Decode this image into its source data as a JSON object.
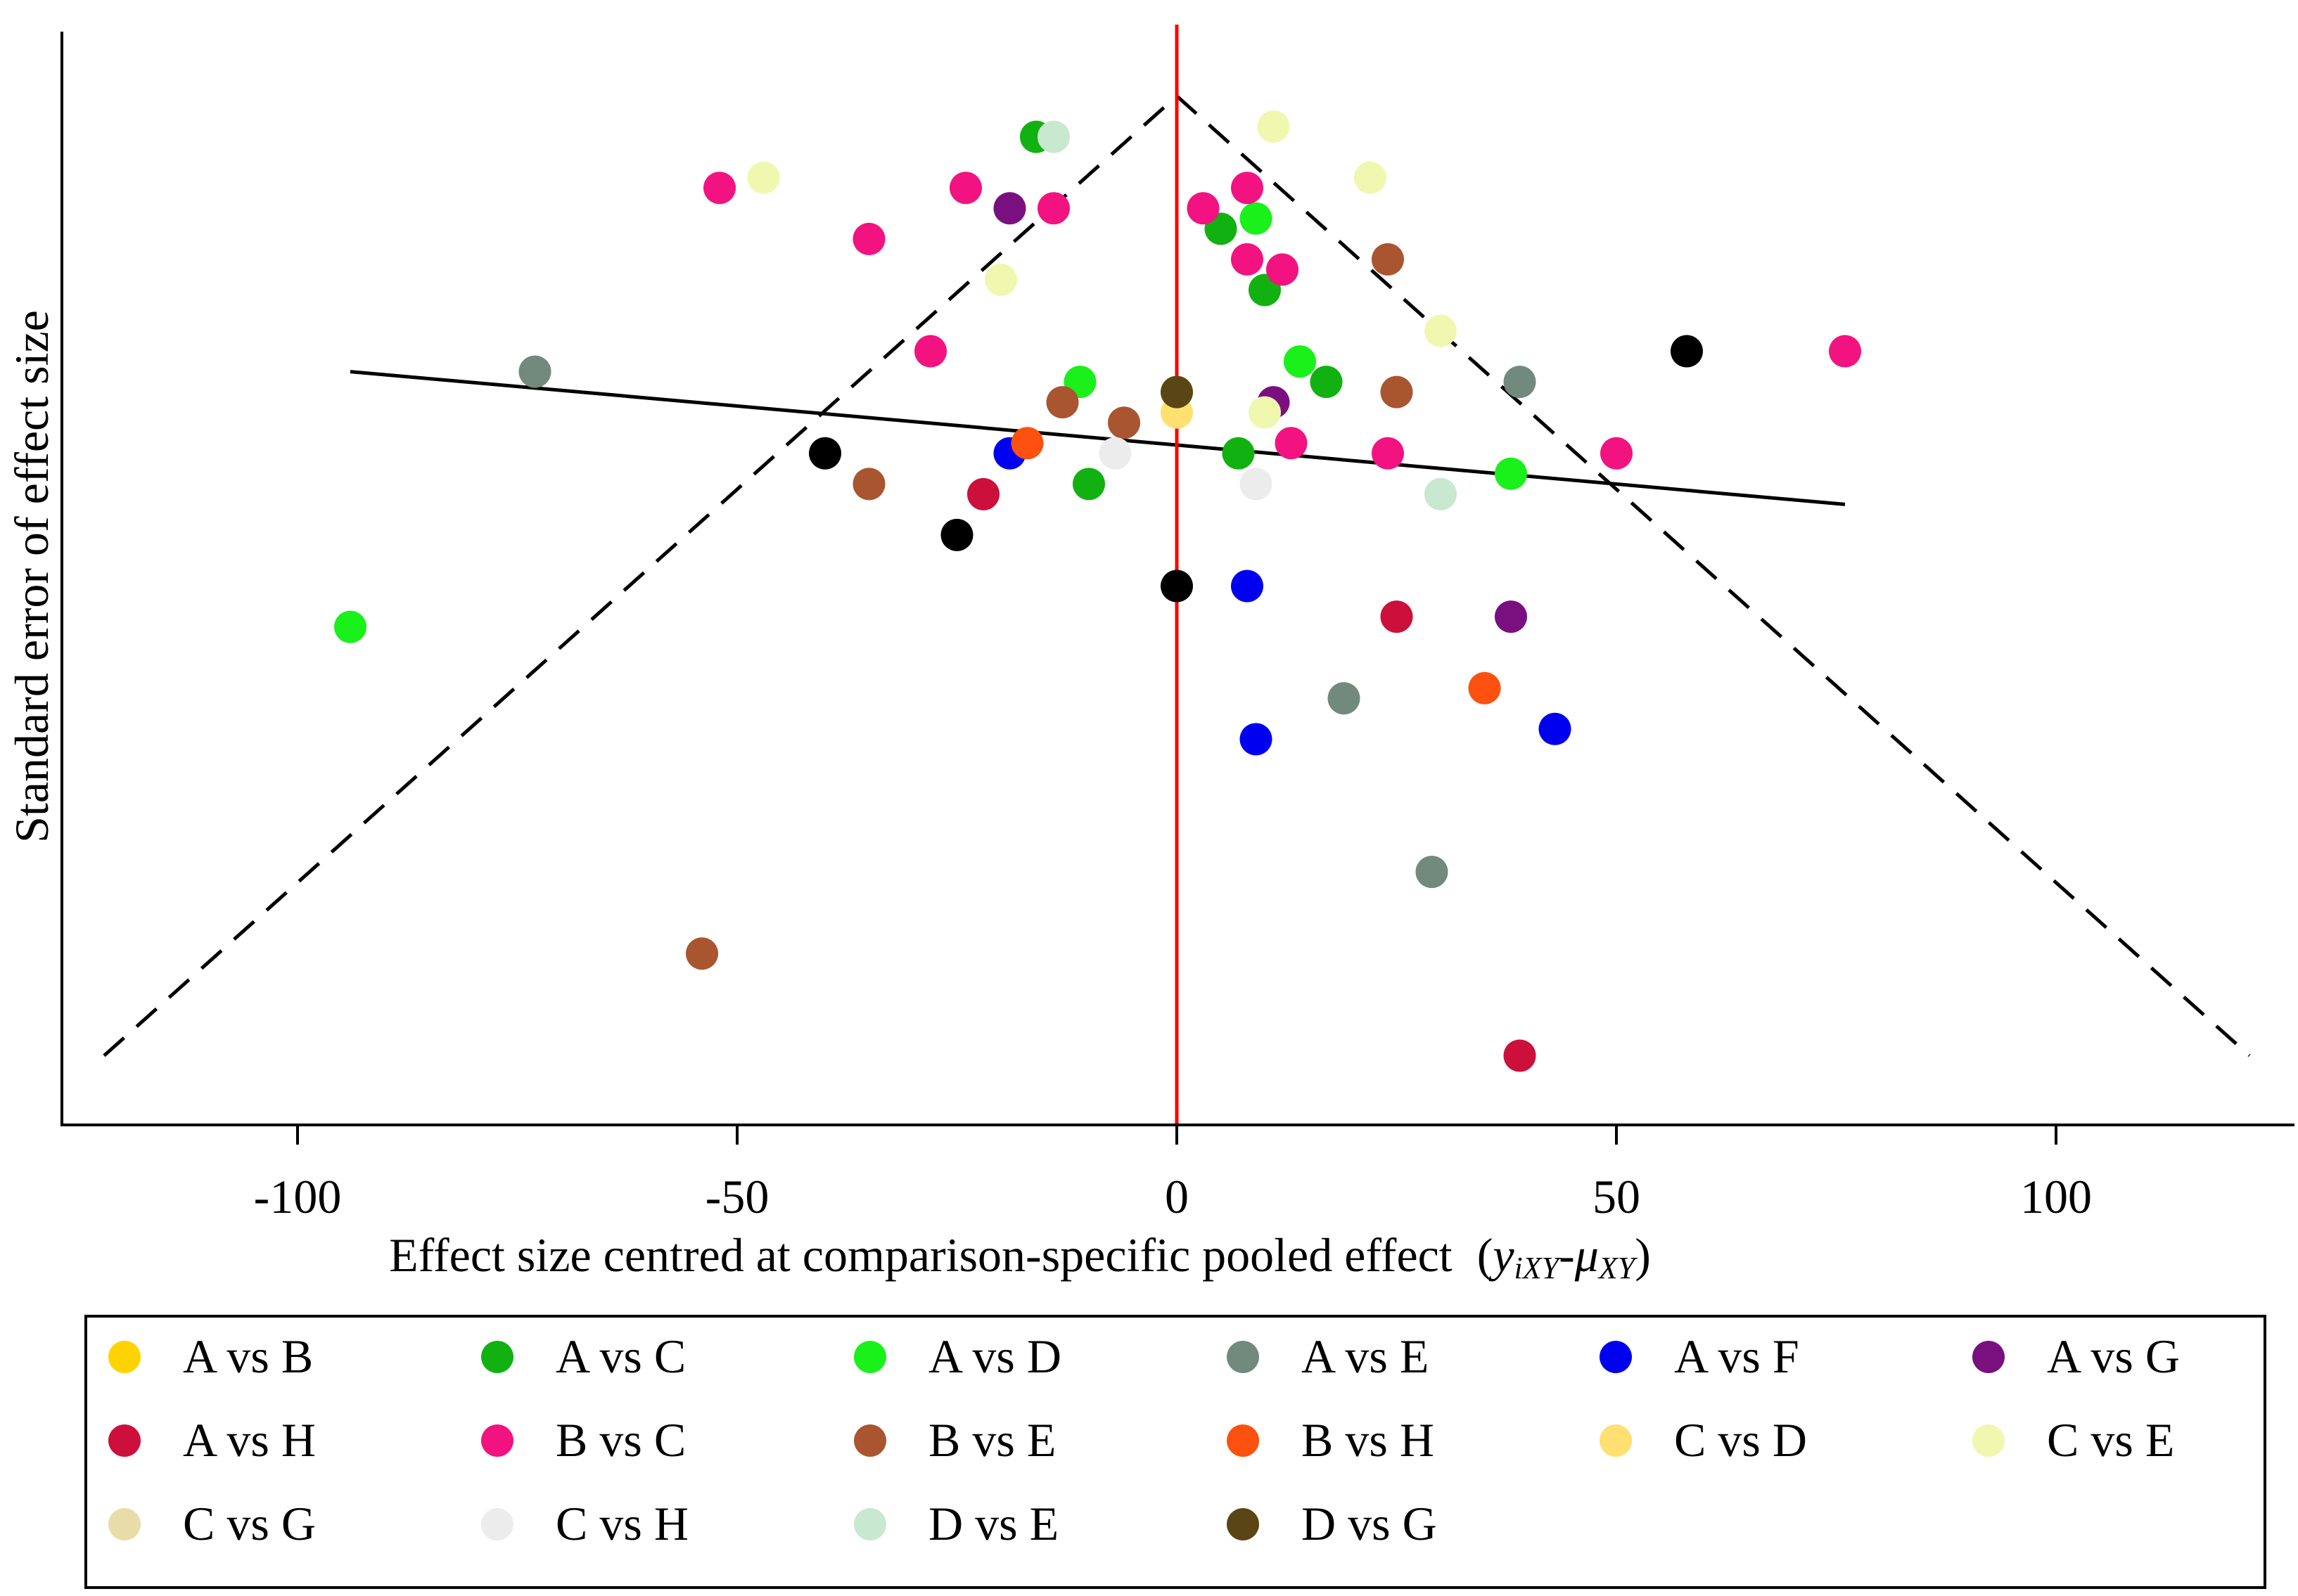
{
  "chart_data": {
    "type": "scatter",
    "title": "",
    "xlabel": "Effect size centred at comparison-specific pooled effect",
    "xlabel_math": {
      "open": "(",
      "y": "y",
      "y_sub": "iXY",
      "dash": "-",
      "mu": "μ",
      "mu_sub": "XY",
      "close": ")"
    },
    "ylabel": "Standard error of effect size",
    "xlim": [
      -127,
      126
    ],
    "ylim": [
      0,
      1
    ],
    "y_reversed": true,
    "xticks": [
      -100,
      -50,
      0,
      50,
      100
    ],
    "xtick_labels": [
      "-100",
      "-50",
      "0",
      "50",
      "100"
    ],
    "yticks_shown": false,
    "grid": false,
    "reference_line": {
      "x": 0,
      "color": "#ff0000"
    },
    "funnel": {
      "apex": [
        0,
        0.97
      ],
      "left_end": [
        -122,
        0.03
      ],
      "right_end": [
        122,
        0.03
      ],
      "style": "dashed"
    },
    "regression_line": {
      "x": [
        -94,
        76
      ],
      "y": [
        0.7,
        0.57
      ]
    },
    "legend_position": "bottom",
    "series": [
      {
        "name": "A vs B",
        "color": "#ffd200",
        "points": [
          [
            0,
            0.68
          ]
        ]
      },
      {
        "name": "A vs C",
        "color": "#12b112",
        "points": [
          [
            -16,
            0.93
          ],
          [
            5,
            0.84
          ],
          [
            10,
            0.78
          ],
          [
            17,
            0.69
          ],
          [
            7,
            0.62
          ],
          [
            -10,
            0.59
          ]
        ]
      },
      {
        "name": "A vs D",
        "color": "#1af01a",
        "points": [
          [
            -94,
            0.45
          ],
          [
            -11,
            0.69
          ],
          [
            9,
            0.85
          ],
          [
            14,
            0.71
          ],
          [
            38,
            0.6
          ]
        ]
      },
      {
        "name": "A vs E",
        "color": "#728a7d",
        "points": [
          [
            -73,
            0.7
          ],
          [
            39,
            0.69
          ],
          [
            19,
            0.38
          ],
          [
            29,
            0.21
          ]
        ]
      },
      {
        "name": "A vs F",
        "color": "#0000f0",
        "points": [
          [
            -19,
            0.62
          ],
          [
            8,
            0.49
          ],
          [
            9,
            0.34
          ],
          [
            43,
            0.35
          ]
        ]
      },
      {
        "name": "A vs G",
        "color": "#7a1080",
        "points": [
          [
            -19,
            0.86
          ],
          [
            11,
            0.67
          ],
          [
            38,
            0.46
          ]
        ]
      },
      {
        "name": "A vs H",
        "color": "#cc0f3b",
        "points": [
          [
            -22,
            0.58
          ],
          [
            25,
            0.46
          ],
          [
            39,
            0.03
          ]
        ]
      },
      {
        "name": "B vs C",
        "color": "#f21380",
        "points": [
          [
            -52,
            0.88
          ],
          [
            -24,
            0.88
          ],
          [
            -14,
            0.86
          ],
          [
            -35,
            0.83
          ],
          [
            -28,
            0.72
          ],
          [
            3,
            0.86
          ],
          [
            8,
            0.88
          ],
          [
            8,
            0.81
          ],
          [
            12,
            0.8
          ],
          [
            13,
            0.63
          ],
          [
            24,
            0.62
          ],
          [
            50,
            0.62
          ],
          [
            76,
            0.72
          ]
        ]
      },
      {
        "name": "B vs E",
        "color": "#a85530",
        "points": [
          [
            24,
            0.81
          ],
          [
            -13,
            0.67
          ],
          [
            -6,
            0.65
          ],
          [
            25,
            0.68
          ],
          [
            -35,
            0.59
          ],
          [
            -54,
            0.13
          ]
        ]
      },
      {
        "name": "B vs H",
        "color": "#fe500e",
        "points": [
          [
            -17,
            0.63
          ],
          [
            35,
            0.39
          ]
        ]
      },
      {
        "name": "C vs D",
        "color": "#ffe070",
        "points": [
          [
            0,
            0.66
          ]
        ]
      },
      {
        "name": "C vs E",
        "color": "#f0f8b0",
        "points": [
          [
            -47,
            0.89
          ],
          [
            11,
            0.94
          ],
          [
            22,
            0.89
          ],
          [
            -20,
            0.79
          ],
          [
            30,
            0.74
          ],
          [
            10,
            0.66
          ]
        ]
      },
      {
        "name": "C vs G",
        "color": "#e8dca8",
        "points": []
      },
      {
        "name": "C vs H",
        "color": "#ececec",
        "points": [
          [
            -7,
            0.62
          ],
          [
            9,
            0.59
          ]
        ]
      },
      {
        "name": "D vs E",
        "color": "#c8e8d0",
        "points": [
          [
            -14,
            0.93
          ],
          [
            30,
            0.58
          ]
        ]
      },
      {
        "name": "D vs G",
        "color": "#5a4514",
        "points": [
          [
            0,
            0.68
          ]
        ]
      },
      {
        "name": "black",
        "legend": false,
        "color": "#000000",
        "points": [
          [
            -40,
            0.62
          ],
          [
            -25,
            0.54
          ],
          [
            0,
            0.49
          ],
          [
            58,
            0.72
          ]
        ]
      }
    ]
  }
}
